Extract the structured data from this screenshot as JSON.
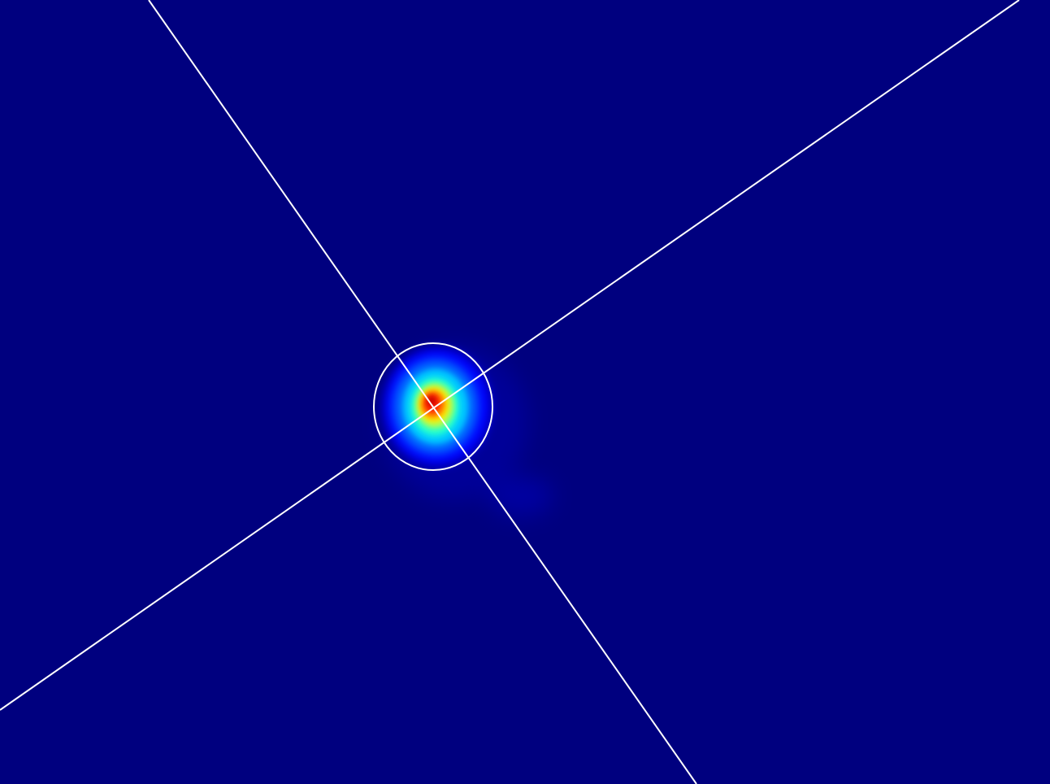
{
  "beam_view": {
    "colormap": "jet",
    "colors": {
      "background": "#00007f",
      "overlay": "#ffffff",
      "jet_stops": [
        "#00007f",
        "#0000ff",
        "#0080ff",
        "#00ffff",
        "#80ff80",
        "#ffff00",
        "#ff8000",
        "#ff0000",
        "#b00000"
      ]
    },
    "overlays": {
      "crosshair": true,
      "fit_ellipse": true
    }
  }
}
